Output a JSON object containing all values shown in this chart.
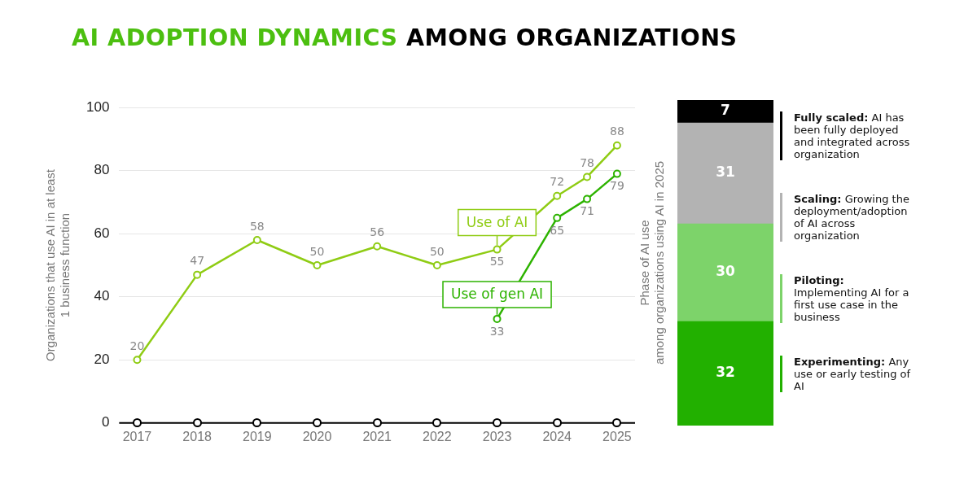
{
  "chart_data": [
    {
      "type": "line",
      "title": "AI ADOPTION DYNAMICS AMONG ORGANIZATIONS",
      "ylabel": "Organizations that use AI in at least 1 business function",
      "xlim": [
        2016.7,
        2025.3
      ],
      "xticks": [
        2017,
        2018,
        2019,
        2020,
        2021,
        2022,
        2023,
        2024,
        2025
      ],
      "ylim": [
        0,
        100
      ],
      "yticks": [
        0,
        20,
        40,
        60,
        80,
        100
      ],
      "grid": "y",
      "marker": "circle",
      "data_labels": true,
      "legend": false,
      "series": [
        {
          "name": "Use of AI",
          "color": "#8fcc14",
          "x": [
            2017,
            2018,
            2019,
            2020,
            2021,
            2022,
            2023,
            2024,
            2024.5,
            2025
          ],
          "values": [
            20,
            47,
            58,
            50,
            56,
            50,
            55,
            72,
            78,
            88
          ]
        },
        {
          "name": "Use of gen AI",
          "color": "#2db300",
          "x": [
            2023,
            2024,
            2024.5,
            2025
          ],
          "values": [
            33,
            65,
            71,
            79
          ]
        }
      ]
    },
    {
      "type": "bar",
      "stacked": true,
      "ylabel": "Phase of AI use among organizations using AI in 2025",
      "categories": [
        null
      ],
      "data_labels": true,
      "legend": "right",
      "series": [
        {
          "name": "Experimenting: Any use or early testing of AI",
          "color": "#22b000",
          "values": [
            32
          ]
        },
        {
          "name": "Piloting: Implementing AI for a first use case in the business",
          "color": "#7dd36a",
          "values": [
            30
          ]
        },
        {
          "name": "Scaling: Growing the deployment/adoption of AI across organization",
          "color": "#b3b3b3",
          "values": [
            31
          ]
        },
        {
          "name": "Fully scaled: AI has been fully deployed and integrated across organization",
          "color": "#000000",
          "values": [
            7
          ]
        }
      ]
    }
  ]
}
